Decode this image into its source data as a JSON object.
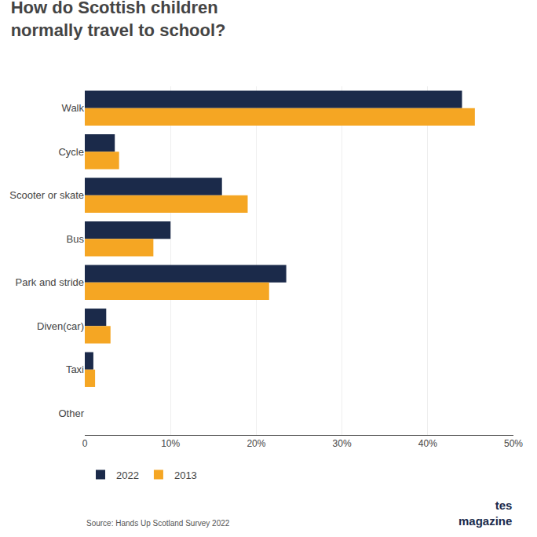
{
  "chart_data": {
    "type": "bar",
    "orientation": "horizontal",
    "title": "How do Scottish children\nnormally travel to school?",
    "categories": [
      "Walk",
      "Cycle",
      "Scooter or skate",
      "Bus",
      "Park and stride",
      "Diven(car)",
      "Taxi",
      "Other"
    ],
    "series": [
      {
        "name": "2022",
        "color": "#1b2a4a",
        "values": [
          44.0,
          3.5,
          16.0,
          10.0,
          23.5,
          2.5,
          1.0,
          0.0
        ]
      },
      {
        "name": "2013",
        "color": "#f5a623",
        "values": [
          45.5,
          4.0,
          19.0,
          8.0,
          21.5,
          3.0,
          1.2,
          0.0
        ]
      }
    ],
    "xlim": [
      0,
      50
    ],
    "xticks": [
      0,
      {
        "value": 10,
        "label": "10%"
      },
      {
        "value": 20,
        "label": "20%"
      },
      {
        "value": 30,
        "label": "30%"
      },
      {
        "value": 40,
        "label": "40%"
      },
      {
        "value": 50,
        "label": "50%"
      }
    ],
    "grid": true,
    "legend": "bottom left",
    "annotations": [
      "Source: Hands Up Scotland Survey 2022",
      "tes\nmagazine"
    ]
  }
}
